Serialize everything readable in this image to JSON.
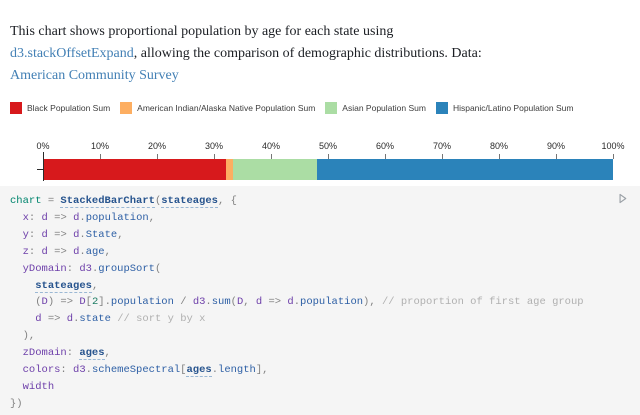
{
  "description": {
    "text_1": "This chart shows proportional population by age for each state using",
    "link_1": "d3.stackOffsetExpand",
    "text_2": ", allowing the comparison of demographic distributions. Data:",
    "link_2": "American Community Survey"
  },
  "legend": {
    "items": [
      {
        "label": "Black Population Sum",
        "color": "#d7191c"
      },
      {
        "label": "American Indian/Alaska Native Population Sum",
        "color": "#fdae61"
      },
      {
        "label": "Asian Population Sum",
        "color": "#abdda4"
      },
      {
        "label": "Hispanic/Latino Population Sum",
        "color": "#2b83ba"
      }
    ]
  },
  "chart_data": {
    "type": "bar",
    "orientation": "horizontal",
    "stacked": true,
    "normalized": true,
    "title": "",
    "xlabel": "",
    "ylabel": "",
    "xlim": [
      0,
      100
    ],
    "x_ticks": [
      "0%",
      "10%",
      "20%",
      "30%",
      "40%",
      "50%",
      "60%",
      "70%",
      "80%",
      "90%",
      "100%"
    ],
    "grid": false,
    "legend_position": "top",
    "series": [
      {
        "name": "Black Population Sum",
        "value_pct": 32.0,
        "color": "#d7191c"
      },
      {
        "name": "American Indian/Alaska Native Population Sum",
        "value_pct": 1.2,
        "color": "#fdae61"
      },
      {
        "name": "Asian Population Sum",
        "value_pct": 14.8,
        "color": "#abdda4"
      },
      {
        "name": "Hispanic/Latino Population Sum",
        "value_pct": 52.0,
        "color": "#2b83ba"
      }
    ]
  },
  "code": {
    "run_icon": "play-icon",
    "lines": [
      [
        {
          "s": "d",
          "t": "chart"
        },
        {
          "s": "o",
          "t": " = "
        },
        {
          "s": "r",
          "t": "StackedBarChart"
        },
        {
          "s": "o",
          "t": "("
        },
        {
          "s": "r",
          "t": "stateages"
        },
        {
          "s": "o",
          "t": ", {"
        }
      ],
      [
        {
          "s": "o",
          "t": "  "
        },
        {
          "s": "v",
          "t": "x"
        },
        {
          "s": "o",
          "t": ": "
        },
        {
          "s": "v",
          "t": "d"
        },
        {
          "s": "o",
          "t": " => "
        },
        {
          "s": "v",
          "t": "d"
        },
        {
          "s": "o",
          "t": "."
        },
        {
          "s": "p",
          "t": "population"
        },
        {
          "s": "o",
          "t": ","
        }
      ],
      [
        {
          "s": "o",
          "t": "  "
        },
        {
          "s": "v",
          "t": "y"
        },
        {
          "s": "o",
          "t": ": "
        },
        {
          "s": "v",
          "t": "d"
        },
        {
          "s": "o",
          "t": " => "
        },
        {
          "s": "v",
          "t": "d"
        },
        {
          "s": "o",
          "t": "."
        },
        {
          "s": "p",
          "t": "State"
        },
        {
          "s": "o",
          "t": ","
        }
      ],
      [
        {
          "s": "o",
          "t": "  "
        },
        {
          "s": "v",
          "t": "z"
        },
        {
          "s": "o",
          "t": ": "
        },
        {
          "s": "v",
          "t": "d"
        },
        {
          "s": "o",
          "t": " => "
        },
        {
          "s": "v",
          "t": "d"
        },
        {
          "s": "o",
          "t": "."
        },
        {
          "s": "p",
          "t": "age"
        },
        {
          "s": "o",
          "t": ","
        }
      ],
      [
        {
          "s": "o",
          "t": "  "
        },
        {
          "s": "v",
          "t": "yDomain"
        },
        {
          "s": "o",
          "t": ": "
        },
        {
          "s": "v",
          "t": "d3"
        },
        {
          "s": "o",
          "t": "."
        },
        {
          "s": "p",
          "t": "groupSort"
        },
        {
          "s": "o",
          "t": "("
        }
      ],
      [
        {
          "s": "o",
          "t": "    "
        },
        {
          "s": "r",
          "t": "stateages"
        },
        {
          "s": "o",
          "t": ","
        }
      ],
      [
        {
          "s": "o",
          "t": "    ("
        },
        {
          "s": "v",
          "t": "D"
        },
        {
          "s": "o",
          "t": ") => "
        },
        {
          "s": "v",
          "t": "D"
        },
        {
          "s": "o",
          "t": "["
        },
        {
          "s": "n",
          "t": "2"
        },
        {
          "s": "o",
          "t": "]."
        },
        {
          "s": "p",
          "t": "population"
        },
        {
          "s": "o",
          "t": " / "
        },
        {
          "s": "v",
          "t": "d3"
        },
        {
          "s": "o",
          "t": "."
        },
        {
          "s": "p",
          "t": "sum"
        },
        {
          "s": "o",
          "t": "("
        },
        {
          "s": "v",
          "t": "D"
        },
        {
          "s": "o",
          "t": ", "
        },
        {
          "s": "v",
          "t": "d"
        },
        {
          "s": "o",
          "t": " => "
        },
        {
          "s": "v",
          "t": "d"
        },
        {
          "s": "o",
          "t": "."
        },
        {
          "s": "p",
          "t": "population"
        },
        {
          "s": "o",
          "t": "), "
        },
        {
          "s": "c",
          "t": "// proportion of first age group"
        }
      ],
      [
        {
          "s": "o",
          "t": "    "
        },
        {
          "s": "v",
          "t": "d"
        },
        {
          "s": "o",
          "t": " => "
        },
        {
          "s": "v",
          "t": "d"
        },
        {
          "s": "o",
          "t": "."
        },
        {
          "s": "p",
          "t": "state"
        },
        {
          "s": "o",
          "t": " "
        },
        {
          "s": "c",
          "t": "// sort y by x"
        }
      ],
      [
        {
          "s": "o",
          "t": "  ),"
        }
      ],
      [
        {
          "s": "o",
          "t": "  "
        },
        {
          "s": "v",
          "t": "zDomain"
        },
        {
          "s": "o",
          "t": ": "
        },
        {
          "s": "r",
          "t": "ages"
        },
        {
          "s": "o",
          "t": ","
        }
      ],
      [
        {
          "s": "o",
          "t": "  "
        },
        {
          "s": "v",
          "t": "colors"
        },
        {
          "s": "o",
          "t": ": "
        },
        {
          "s": "v",
          "t": "d3"
        },
        {
          "s": "o",
          "t": "."
        },
        {
          "s": "p",
          "t": "schemeSpectral"
        },
        {
          "s": "o",
          "t": "["
        },
        {
          "s": "r",
          "t": "ages"
        },
        {
          "s": "o",
          "t": "."
        },
        {
          "s": "p",
          "t": "length"
        },
        {
          "s": "o",
          "t": "],"
        }
      ],
      [
        {
          "s": "o",
          "t": "  "
        },
        {
          "s": "v",
          "t": "width"
        }
      ],
      [
        {
          "s": "o",
          "t": "})"
        }
      ]
    ]
  }
}
